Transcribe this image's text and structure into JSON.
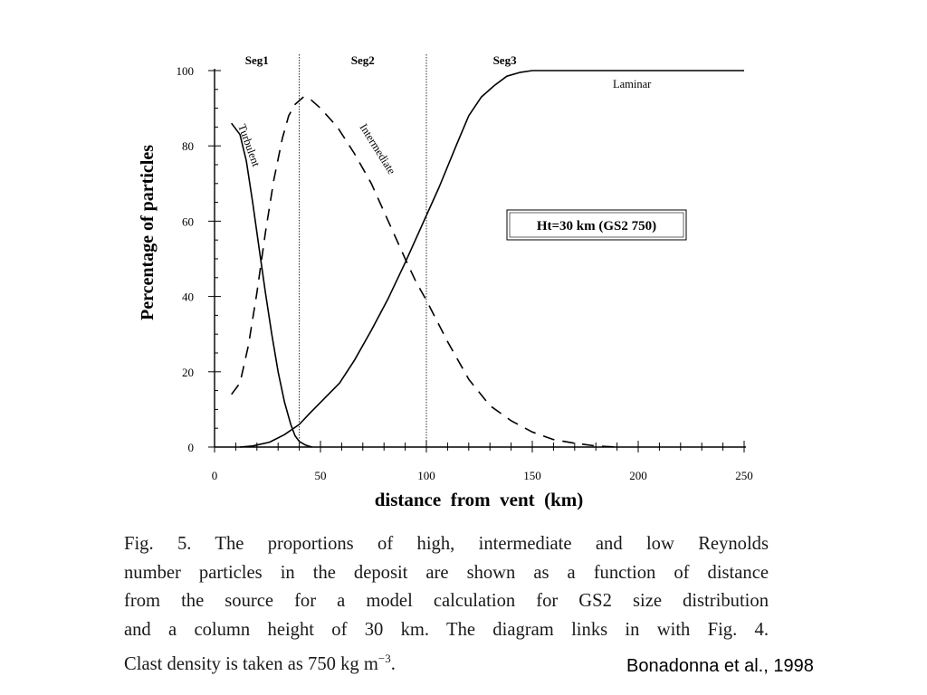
{
  "chart_data": {
    "type": "line",
    "xlabel": "distance  from  vent  (km)",
    "ylabel": "Percentage of particles",
    "xlim": [
      0,
      250
    ],
    "ylim": [
      0,
      100
    ],
    "xticks": [
      0,
      50,
      100,
      150,
      200,
      250
    ],
    "yticks": [
      0,
      20,
      40,
      60,
      80,
      100
    ],
    "grid": false,
    "segments": [
      {
        "label": "Seg1",
        "x": 20
      },
      {
        "label": "Seg2",
        "x": 70
      },
      {
        "label": "Seg3",
        "x": 137
      }
    ],
    "boundaries": [
      40,
      100
    ],
    "annotation": "Ht=30 km (GS2 750)",
    "series": [
      {
        "name": "Turbulent",
        "style": "solid",
        "x": [
          8,
          12,
          15,
          18,
          21,
          24,
          27,
          30,
          33,
          36,
          38,
          40,
          43,
          46
        ],
        "y": [
          86,
          83,
          76,
          65,
          53,
          41,
          30,
          20,
          12,
          6,
          3,
          1.5,
          0.5,
          0
        ]
      },
      {
        "name": "Intermediate",
        "style": "dashed",
        "x": [
          8,
          12,
          16,
          20,
          24,
          28,
          32,
          35,
          38,
          42,
          45,
          50,
          58,
          66,
          74,
          82,
          90,
          95,
          100,
          110,
          120,
          130,
          140,
          150,
          160,
          170,
          180,
          190
        ],
        "y": [
          14,
          17,
          27,
          41,
          57,
          71,
          82,
          88,
          91,
          93,
          92.5,
          90,
          85,
          78,
          70,
          60,
          50,
          44,
          39,
          28,
          18,
          11,
          7,
          4,
          2,
          1,
          0.3,
          0
        ]
      },
      {
        "name": "Laminar",
        "style": "solid",
        "x": [
          12,
          18,
          26,
          33,
          40,
          45,
          52,
          59,
          66,
          74,
          82,
          90,
          98,
          106,
          114,
          120,
          126,
          132,
          138,
          144,
          150,
          158,
          170,
          200,
          250
        ],
        "y": [
          0,
          0.3,
          1.3,
          3.3,
          6,
          9,
          13,
          17,
          23,
          31,
          39.5,
          49,
          59,
          69,
          80,
          88,
          93,
          96,
          98.5,
          99.5,
          100,
          100,
          100,
          100,
          100
        ]
      }
    ],
    "series_labels": [
      "Turbulent",
      "Intermediate",
      "Laminar"
    ]
  },
  "caption": {
    "lines": [
      "Fig. 5. The proportions of high, intermediate and low Reynolds",
      "number particles in the deposit are shown as a function of distance",
      "from the source for a model calculation for GS2 size distribution",
      "and a column height of 30 km. The diagram links in with Fig. 4."
    ],
    "last_line": "Clast density is taken as 750 kg m",
    "last_line_sup": "−3",
    "last_line_end": "."
  },
  "citation": "Bonadonna et al., 1998"
}
